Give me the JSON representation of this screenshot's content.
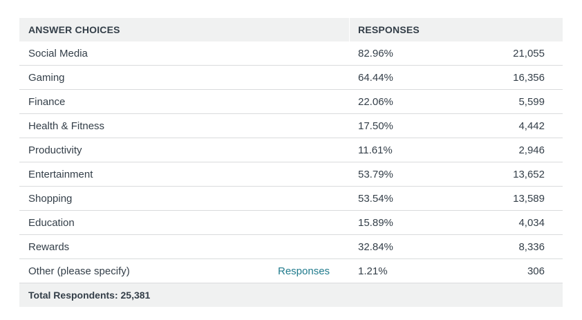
{
  "header": {
    "answer_choices": "ANSWER CHOICES",
    "responses": "RESPONSES"
  },
  "rows": [
    {
      "label": "Social Media",
      "percent": "82.96%",
      "count": "21,055"
    },
    {
      "label": "Gaming",
      "percent": "64.44%",
      "count": "16,356"
    },
    {
      "label": "Finance",
      "percent": "22.06%",
      "count": "5,599"
    },
    {
      "label": "Health & Fitness",
      "percent": "17.50%",
      "count": "4,442"
    },
    {
      "label": "Productivity",
      "percent": "11.61%",
      "count": "2,946"
    },
    {
      "label": "Entertainment",
      "percent": "53.79%",
      "count": "13,652"
    },
    {
      "label": "Shopping",
      "percent": "53.54%",
      "count": "13,589"
    },
    {
      "label": "Education",
      "percent": "15.89%",
      "count": "4,034"
    },
    {
      "label": "Rewards",
      "percent": "32.84%",
      "count": "8,336"
    },
    {
      "label": "Other (please specify)",
      "link": "Responses",
      "percent": "1.21%",
      "count": "306"
    }
  ],
  "footer": {
    "total": "Total Respondents: 25,381"
  }
}
